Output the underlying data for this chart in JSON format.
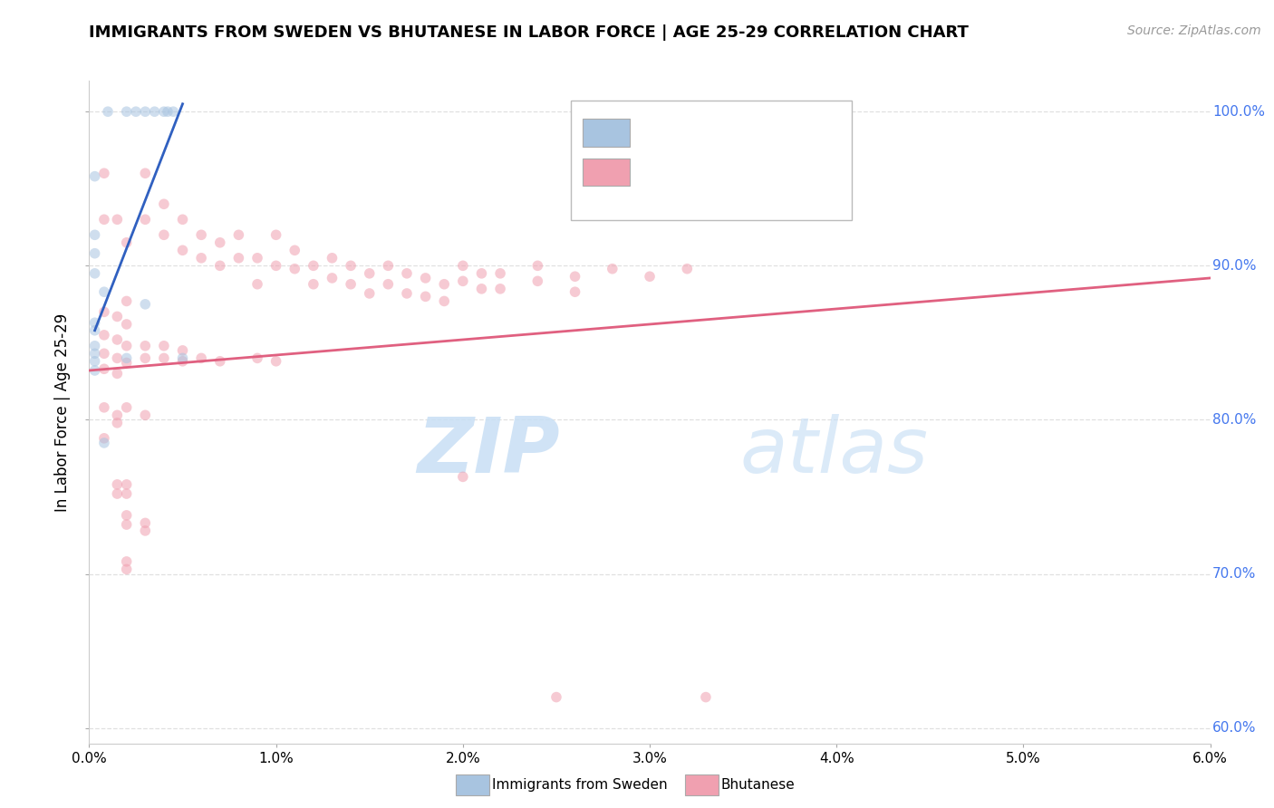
{
  "title": "IMMIGRANTS FROM SWEDEN VS BHUTANESE IN LABOR FORCE | AGE 25-29 CORRELATION CHART",
  "source": "Source: ZipAtlas.com",
  "ylabel": "In Labor Force | Age 25-29",
  "watermark": "ZIPatlas",
  "xlim": [
    0.0,
    0.06
  ],
  "ylim": [
    0.59,
    1.02
  ],
  "xtick_labels": [
    "0.0%",
    "1.0%",
    "2.0%",
    "3.0%",
    "4.0%",
    "5.0%",
    "6.0%"
  ],
  "xtick_values": [
    0.0,
    0.01,
    0.02,
    0.03,
    0.04,
    0.05,
    0.06
  ],
  "ytick_labels": [
    "60.0%",
    "70.0%",
    "80.0%",
    "90.0%",
    "100.0%"
  ],
  "ytick_values": [
    0.6,
    0.7,
    0.8,
    0.9,
    1.0
  ],
  "sweden_color": "#a8c4e0",
  "bhutan_color": "#f0a0b0",
  "sweden_line_color": "#3060c0",
  "bhutan_line_color": "#e06080",
  "legend_r_color": "#3399ff",
  "legend_n_color": "#ff3333",
  "sweden_scatter": [
    [
      0.001,
      1.0
    ],
    [
      0.002,
      1.0
    ],
    [
      0.0025,
      1.0
    ],
    [
      0.003,
      1.0
    ],
    [
      0.0035,
      1.0
    ],
    [
      0.004,
      1.0
    ],
    [
      0.0042,
      1.0
    ],
    [
      0.0045,
      1.0
    ],
    [
      0.0003,
      0.958
    ],
    [
      0.0003,
      0.92
    ],
    [
      0.0003,
      0.908
    ],
    [
      0.0008,
      0.883
    ],
    [
      0.003,
      0.875
    ],
    [
      0.0003,
      0.863
    ],
    [
      0.0003,
      0.843
    ],
    [
      0.0003,
      0.838
    ],
    [
      0.0003,
      0.832
    ],
    [
      0.002,
      0.84
    ],
    [
      0.005,
      0.84
    ],
    [
      0.0008,
      0.785
    ],
    [
      0.0003,
      0.895
    ],
    [
      0.0003,
      0.848
    ],
    [
      0.0003,
      0.858
    ]
  ],
  "bhutan_scatter": [
    [
      0.0008,
      0.96
    ],
    [
      0.0015,
      0.93
    ],
    [
      0.002,
      0.915
    ],
    [
      0.003,
      0.96
    ],
    [
      0.003,
      0.93
    ],
    [
      0.004,
      0.94
    ],
    [
      0.004,
      0.92
    ],
    [
      0.005,
      0.93
    ],
    [
      0.005,
      0.91
    ],
    [
      0.006,
      0.92
    ],
    [
      0.006,
      0.905
    ],
    [
      0.007,
      0.915
    ],
    [
      0.007,
      0.9
    ],
    [
      0.008,
      0.92
    ],
    [
      0.008,
      0.905
    ],
    [
      0.009,
      0.905
    ],
    [
      0.009,
      0.888
    ],
    [
      0.01,
      0.92
    ],
    [
      0.01,
      0.9
    ],
    [
      0.011,
      0.91
    ],
    [
      0.011,
      0.898
    ],
    [
      0.012,
      0.9
    ],
    [
      0.012,
      0.888
    ],
    [
      0.013,
      0.905
    ],
    [
      0.013,
      0.892
    ],
    [
      0.014,
      0.9
    ],
    [
      0.014,
      0.888
    ],
    [
      0.015,
      0.895
    ],
    [
      0.015,
      0.882
    ],
    [
      0.016,
      0.9
    ],
    [
      0.016,
      0.888
    ],
    [
      0.017,
      0.895
    ],
    [
      0.017,
      0.882
    ],
    [
      0.018,
      0.892
    ],
    [
      0.018,
      0.88
    ],
    [
      0.019,
      0.888
    ],
    [
      0.019,
      0.877
    ],
    [
      0.02,
      0.9
    ],
    [
      0.02,
      0.89
    ],
    [
      0.021,
      0.895
    ],
    [
      0.021,
      0.885
    ],
    [
      0.022,
      0.895
    ],
    [
      0.022,
      0.885
    ],
    [
      0.024,
      0.9
    ],
    [
      0.024,
      0.89
    ],
    [
      0.026,
      0.893
    ],
    [
      0.026,
      0.883
    ],
    [
      0.028,
      0.898
    ],
    [
      0.03,
      0.893
    ],
    [
      0.032,
      0.898
    ],
    [
      0.0008,
      0.87
    ],
    [
      0.0015,
      0.867
    ],
    [
      0.002,
      0.862
    ],
    [
      0.0008,
      0.855
    ],
    [
      0.0015,
      0.852
    ],
    [
      0.002,
      0.848
    ],
    [
      0.0008,
      0.843
    ],
    [
      0.0015,
      0.84
    ],
    [
      0.002,
      0.837
    ],
    [
      0.0008,
      0.833
    ],
    [
      0.0015,
      0.83
    ],
    [
      0.003,
      0.848
    ],
    [
      0.003,
      0.84
    ],
    [
      0.004,
      0.848
    ],
    [
      0.004,
      0.84
    ],
    [
      0.005,
      0.845
    ],
    [
      0.005,
      0.838
    ],
    [
      0.006,
      0.84
    ],
    [
      0.007,
      0.838
    ],
    [
      0.009,
      0.84
    ],
    [
      0.01,
      0.838
    ],
    [
      0.0008,
      0.808
    ],
    [
      0.0015,
      0.803
    ],
    [
      0.002,
      0.808
    ],
    [
      0.003,
      0.803
    ],
    [
      0.0015,
      0.798
    ],
    [
      0.0008,
      0.788
    ],
    [
      0.0015,
      0.758
    ],
    [
      0.0015,
      0.752
    ],
    [
      0.002,
      0.758
    ],
    [
      0.002,
      0.752
    ],
    [
      0.002,
      0.738
    ],
    [
      0.002,
      0.732
    ],
    [
      0.003,
      0.728
    ],
    [
      0.003,
      0.733
    ],
    [
      0.002,
      0.708
    ],
    [
      0.002,
      0.703
    ],
    [
      0.033,
      0.96
    ],
    [
      0.025,
      0.62
    ],
    [
      0.033,
      0.62
    ],
    [
      0.0008,
      0.93
    ],
    [
      0.02,
      0.763
    ],
    [
      0.002,
      0.877
    ]
  ],
  "sweden_trend_x": [
    0.0003,
    0.005
  ],
  "sweden_trend_y": [
    0.858,
    1.005
  ],
  "bhutan_trend_x": [
    0.0,
    0.06
  ],
  "bhutan_trend_y": [
    0.832,
    0.892
  ],
  "background_color": "#ffffff",
  "grid_color": "#e0e0e0",
  "scatter_size": 70,
  "scatter_alpha": 0.55,
  "right_ytick_color": "#4477ee"
}
